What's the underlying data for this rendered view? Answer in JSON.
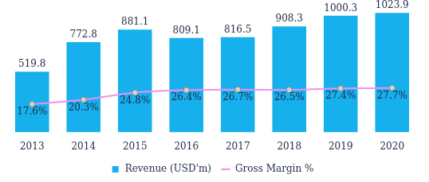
{
  "chart_data": {
    "type": "bar",
    "categories": [
      "2013",
      "2014",
      "2015",
      "2016",
      "2017",
      "2018",
      "2019",
      "2020"
    ],
    "series": [
      {
        "name": "Revenue (USD'm)",
        "type": "bar",
        "color": "#16b0ec",
        "values": [
          519.8,
          772.8,
          881.1,
          809.1,
          816.5,
          908.3,
          1000.3,
          1023.9
        ],
        "data_labels": true
      },
      {
        "name": "Gross Margin %",
        "type": "line",
        "axis": "y2",
        "color": "#f090f0",
        "marker": "circle",
        "values": [
          17.6,
          20.3,
          24.8,
          26.4,
          26.7,
          26.5,
          27.4,
          27.7
        ],
        "value_labels": [
          "17.6%",
          "20.3%",
          "24.8%",
          "26.4%",
          "26.7%",
          "26.5%",
          "27.4%",
          "27.7%"
        ],
        "data_labels": true
      }
    ],
    "ylim": [
      0,
      1100
    ],
    "y2lim": [
      0,
      80
    ],
    "grid": false,
    "legend": "bottom",
    "tick_labels": "x"
  }
}
